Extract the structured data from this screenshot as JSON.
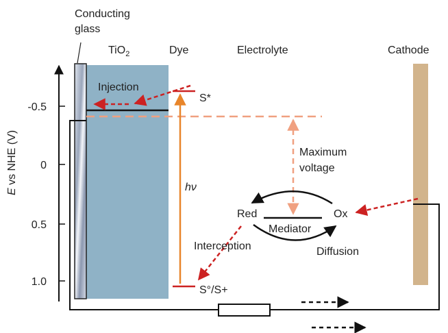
{
  "labels": {
    "conducting_glass_1": "Conducting",
    "conducting_glass_2": "glass",
    "tio2_main": "TiO",
    "tio2_sub": "2",
    "dye": "Dye",
    "electrolyte": "Electrolyte",
    "cathode": "Cathode",
    "injection": "Injection",
    "s_star": "S*",
    "s_ground": "S°/S+",
    "hv": "hν",
    "maximum": "Maximum",
    "voltage": "voltage",
    "red": "Red",
    "ox": "Ox",
    "mediator": "Mediator",
    "interception": "Interception",
    "diffusion": "Diffusion",
    "y_axis_italic": "E",
    "y_axis_rest": " vs NHE (V)"
  },
  "y_ticks": [
    "-0.5",
    "0",
    "0.5",
    "1.0"
  ],
  "colors": {
    "tio2": "#8fb2c6",
    "cathode": "#d2b48c",
    "dye_level": "#cc2222",
    "excitation": "#e8852a",
    "dashed_orange": "#f0a080",
    "dashed_red": "#cc2222",
    "line": "#111111"
  }
}
